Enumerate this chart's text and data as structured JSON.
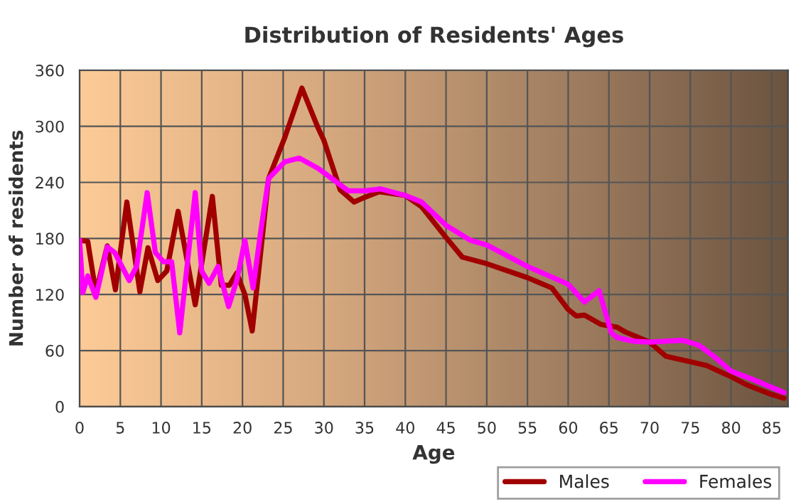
{
  "chart_data": {
    "type": "line",
    "title": "Distribution of Residents' Ages",
    "xlabel": "Age",
    "ylabel": "Number of residents",
    "xlim": [
      0,
      87
    ],
    "ylim": [
      0,
      360
    ],
    "xticks": [
      0,
      5,
      10,
      15,
      20,
      25,
      30,
      35,
      40,
      45,
      50,
      55,
      60,
      65,
      70,
      75,
      80,
      85
    ],
    "yticks": [
      0,
      60,
      120,
      180,
      240,
      300,
      360
    ],
    "grid": true,
    "legend": "bottom right",
    "line_style": "solid",
    "marker": "none",
    "series": [
      {
        "name": "Males",
        "color": "#a00000",
        "x": [
          0,
          1,
          2,
          3.4,
          4.4,
          5.8,
          7.4,
          8.4,
          9.6,
          10.7,
          12.1,
          14.2,
          16.3,
          17.4,
          18.4,
          19.3,
          20.3,
          21.2,
          22.3,
          23.2,
          25.2,
          27.3,
          29.3,
          30,
          32,
          33.7,
          35,
          36.8,
          40,
          42,
          45,
          47,
          50,
          55,
          58,
          60,
          61,
          62,
          64,
          66,
          67,
          70,
          72,
          75,
          77,
          80,
          82,
          85,
          86.5
        ],
        "values": [
          178,
          177,
          122,
          172,
          125,
          219,
          123,
          170,
          135,
          145,
          209,
          109,
          225,
          130,
          130,
          143,
          120,
          81,
          170,
          244,
          288,
          341,
          298,
          285,
          232,
          219,
          224,
          230,
          226,
          214,
          181,
          160,
          153,
          138,
          127,
          104,
          97,
          98,
          88,
          85,
          80,
          69,
          54,
          48,
          44,
          32,
          23,
          13,
          9
        ]
      },
      {
        "name": "Females",
        "color": "#ff00ff",
        "x": [
          0,
          0.4,
          1,
          2,
          3.4,
          4.3,
          5.2,
          6.1,
          7,
          8.3,
          9.3,
          10.3,
          11.3,
          12.3,
          13,
          14.2,
          15,
          15.9,
          17,
          18.3,
          19.3,
          20.3,
          21.3,
          22.3,
          23.2,
          25.2,
          27,
          29.3,
          31,
          33,
          35,
          37,
          40,
          42,
          45,
          48,
          50,
          55,
          60,
          62,
          63.8,
          65.3,
          66,
          68,
          70,
          72,
          74,
          76,
          78,
          80,
          83,
          86.5
        ],
        "values": [
          178,
          122,
          140,
          117,
          171,
          165,
          150,
          135,
          150,
          229,
          165,
          155,
          155,
          79,
          135,
          229,
          145,
          132,
          150,
          107,
          135,
          178,
          127,
          191,
          244,
          262,
          266,
          255,
          244,
          231,
          231,
          233,
          226,
          219,
          194,
          178,
          173,
          150,
          131,
          112,
          124,
          79,
          74,
          70,
          69,
          70,
          71,
          66,
          53,
          38,
          28,
          15
        ]
      }
    ]
  }
}
